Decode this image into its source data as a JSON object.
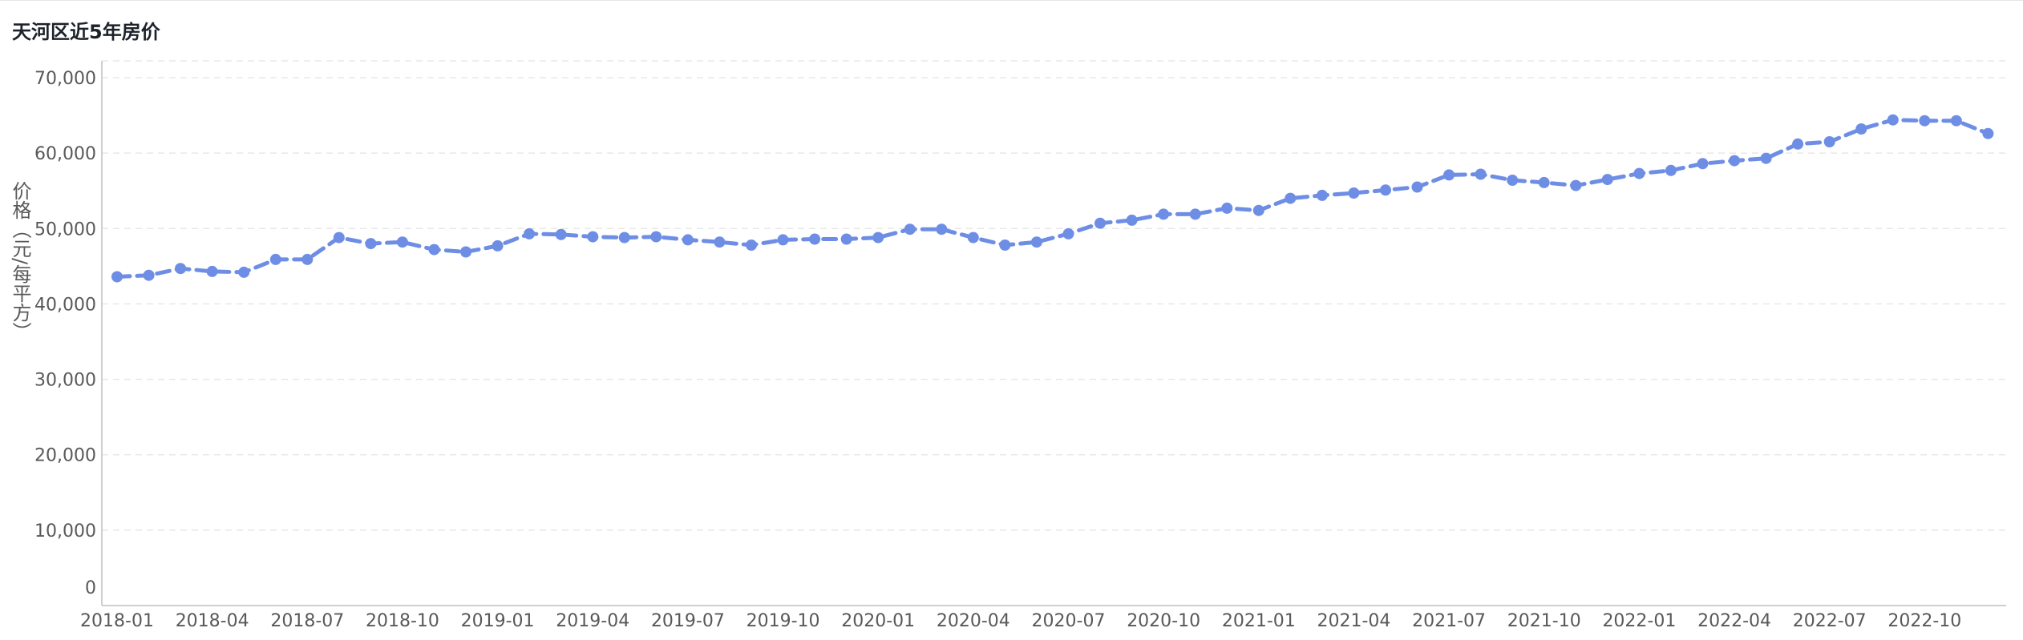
{
  "chart_data": {
    "type": "line",
    "title": "天河区近5年房价",
    "xlabel": "",
    "ylabel": "价格（元/每平方）",
    "ylim": [
      0,
      70000
    ],
    "yticks": [
      "0",
      "10,000",
      "20,000",
      "30,000",
      "40,000",
      "50,000",
      "60,000",
      "70,000"
    ],
    "xtick_labels": [
      "2018-01",
      "2018-04",
      "2018-07",
      "2018-10",
      "2019-01",
      "2019-04",
      "2019-07",
      "2019-10",
      "2020-01",
      "2020-04",
      "2020-07",
      "2020-10",
      "2021-01",
      "2021-04",
      "2021-07",
      "2021-10",
      "2022-01",
      "2022-04",
      "2022-07",
      "2022-10"
    ],
    "grid": true,
    "line_color": "#6e8ee6",
    "x": [
      "2018-01",
      "2018-02",
      "2018-03",
      "2018-04",
      "2018-05",
      "2018-06",
      "2018-07",
      "2018-08",
      "2018-09",
      "2018-10",
      "2018-11",
      "2018-12",
      "2019-01",
      "2019-02",
      "2019-03",
      "2019-04",
      "2019-05",
      "2019-06",
      "2019-07",
      "2019-08",
      "2019-09",
      "2019-10",
      "2019-11",
      "2019-12",
      "2020-01",
      "2020-02",
      "2020-03",
      "2020-04",
      "2020-05",
      "2020-06",
      "2020-07",
      "2020-08",
      "2020-09",
      "2020-10",
      "2020-11",
      "2020-12",
      "2021-01",
      "2021-02",
      "2021-03",
      "2021-04",
      "2021-05",
      "2021-06",
      "2021-07",
      "2021-08",
      "2021-09",
      "2021-10",
      "2021-11",
      "2021-12",
      "2022-01",
      "2022-02",
      "2022-03",
      "2022-04",
      "2022-05",
      "2022-06",
      "2022-07",
      "2022-08",
      "2022-09",
      "2022-10",
      "2022-11",
      "2022-12"
    ],
    "values": [
      43600,
      43800,
      44700,
      44300,
      44200,
      45900,
      45900,
      48800,
      48000,
      48200,
      47200,
      46900,
      47700,
      49300,
      49200,
      48900,
      48800,
      48900,
      48500,
      48200,
      47800,
      48500,
      48600,
      48600,
      48800,
      49900,
      49900,
      48800,
      47800,
      48200,
      49300,
      50700,
      51100,
      51900,
      51900,
      52700,
      52400,
      54000,
      54400,
      54700,
      55100,
      55500,
      57100,
      57200,
      56400,
      56100,
      55700,
      56500,
      57300,
      57700,
      58600,
      59000,
      59300,
      61200,
      61500,
      63200,
      64400,
      64300,
      64300,
      62600
    ]
  }
}
